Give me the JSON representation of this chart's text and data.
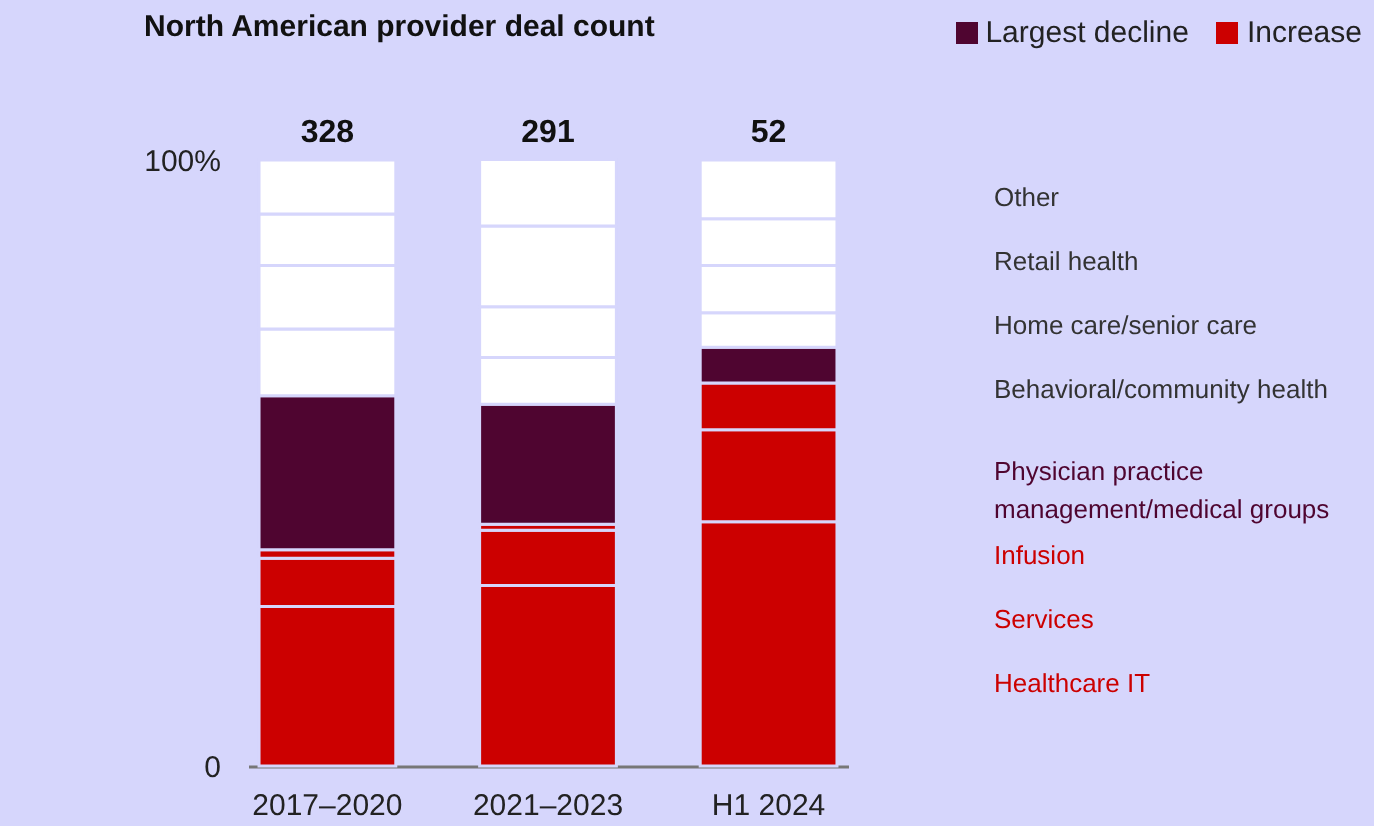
{
  "chart_data": {
    "type": "bar",
    "stacked": true,
    "title": "North American provider deal count",
    "categories": [
      "2017–2020",
      "2021–2023",
      "H1 2024"
    ],
    "series": [
      {
        "name": "Healthcare IT",
        "color": "#cc0000",
        "values": [
          26.3,
          29.8,
          40.3
        ]
      },
      {
        "name": "Services",
        "color": "#cc0000",
        "values": [
          8.0,
          9.1,
          15.2
        ]
      },
      {
        "name": "Infusion",
        "color": "#cc0000",
        "values": [
          1.4,
          1.0,
          7.7
        ]
      },
      {
        "name": "Physician practice management/medical groups",
        "color": "#4f0530",
        "values": [
          25.4,
          19.8,
          5.9
        ]
      },
      {
        "name": "Behavioral/community health",
        "color": "#ffffff",
        "values": [
          11.0,
          7.7,
          5.7
        ]
      },
      {
        "name": "Home care/senior care",
        "color": "#ffffff",
        "values": [
          10.5,
          8.4,
          7.8
        ]
      },
      {
        "name": "Retail health",
        "color": "#ffffff",
        "values": [
          8.5,
          13.3,
          7.7
        ]
      },
      {
        "name": "Other",
        "color": "#ffffff",
        "values": [
          8.9,
          11.0,
          9.7
        ]
      }
    ],
    "ylim": [
      0,
      100
    ],
    "yticks": [
      0,
      {
        "value": 100,
        "label": "100%"
      }
    ],
    "annotations": [
      "Largest decline",
      "Increase",
      {
        "text": "328",
        "x": "2017–2020",
        "y": 100
      },
      {
        "text": "291",
        "x": "2021–2023",
        "y": 100
      },
      {
        "text": "52",
        "x": "H1 2024",
        "y": 100
      }
    ],
    "grid": false,
    "legend": false
  }
}
